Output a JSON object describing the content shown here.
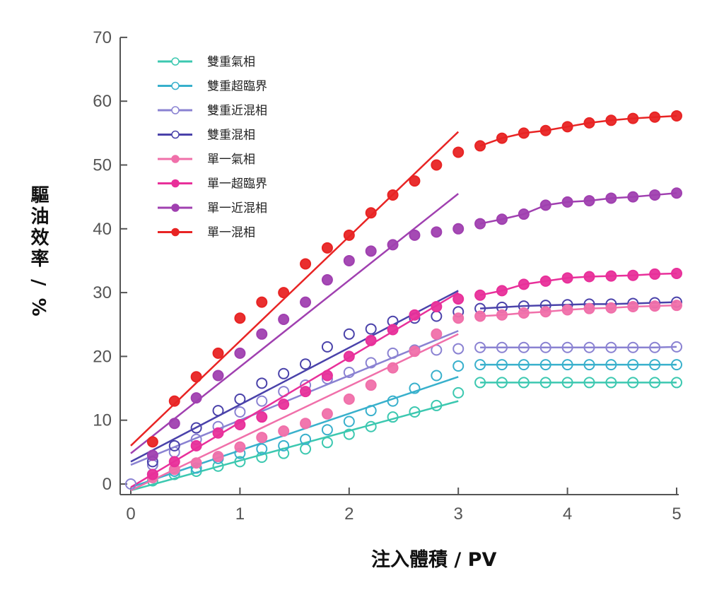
{
  "chart_data": {
    "type": "scatter",
    "title": "",
    "xlabel": "注入體積 / PV",
    "ylabel": "驅油效率 / %",
    "xlim": [
      0,
      5
    ],
    "ylim": [
      0,
      70
    ],
    "xticks": [
      "0",
      "1",
      "2",
      "3",
      "4",
      "5"
    ],
    "yticks": [
      "0",
      "10",
      "20",
      "30",
      "40",
      "50",
      "60",
      "70"
    ],
    "legend_position": "top-left",
    "x_phase1": [
      0.2,
      0.4,
      0.6,
      0.8,
      1.0,
      1.2,
      1.4,
      1.6,
      1.8,
      2.0,
      2.2,
      2.4,
      2.6,
      2.8,
      3.0
    ],
    "x_phase2": [
      3.2,
      3.4,
      3.6,
      3.8,
      4.0,
      4.2,
      4.4,
      4.6,
      4.8,
      5.0
    ],
    "series": [
      {
        "name": "雙重氣相",
        "color": "#3cc8b0",
        "filled": false,
        "fit": [
          -1,
          13
        ],
        "phase1": [
          0.5,
          1.5,
          2,
          2.8,
          3.5,
          4.2,
          4.8,
          5.5,
          6.5,
          7.8,
          9,
          10.5,
          11.3,
          12.3,
          14.3
        ],
        "phase2": [
          15.9,
          15.9,
          15.9,
          15.9,
          15.9,
          15.9,
          15.9,
          15.9,
          15.9,
          15.9
        ]
      },
      {
        "name": "雙重超臨界",
        "color": "#38b0cc",
        "filled": false,
        "fit": [
          -0.5,
          16.8
        ],
        "phase1": [
          1.5,
          2,
          2.5,
          4,
          4.8,
          5.5,
          6,
          7,
          8.5,
          9.8,
          11.5,
          13,
          15,
          17,
          18.5
        ],
        "phase2": [
          18.7,
          18.7,
          18.7,
          18.7,
          18.7,
          18.7,
          18.7,
          18.7,
          18.7,
          18.7
        ]
      },
      {
        "name": "雙重近混相",
        "color": "#8a82d2",
        "filled": false,
        "fit": [
          3,
          24
        ],
        "phase1": [
          3,
          5,
          7,
          9,
          11.3,
          13,
          14.5,
          15.5,
          16.5,
          17.5,
          19,
          20.5,
          21,
          21,
          21.2
        ],
        "phase2": [
          21.4,
          21.4,
          21.4,
          21.4,
          21.4,
          21.4,
          21.4,
          21.4,
          21.4,
          21.5
        ]
      },
      {
        "name": "雙重混相",
        "color": "#4a42aa",
        "filled": false,
        "fit": [
          3.5,
          30.3
        ],
        "phase1": [
          3.5,
          6,
          8.8,
          11.5,
          13.3,
          15.8,
          17.3,
          18.8,
          21.5,
          23.5,
          24.3,
          25.5,
          26,
          26.3,
          27
        ],
        "phase2": [
          27.5,
          27.7,
          27.9,
          28,
          28.1,
          28.2,
          28.2,
          28.3,
          28.4,
          28.5
        ]
      },
      {
        "name": "單一氣相",
        "color": "#f070aa",
        "filled": true,
        "fit": [
          -1,
          23.5
        ],
        "phase1": [
          1,
          2.3,
          3.3,
          4.3,
          5.8,
          7.3,
          8.3,
          9.5,
          11,
          13.3,
          15.5,
          18.2,
          20.8,
          23.5,
          26
        ],
        "phase2": [
          26.3,
          26.5,
          26.8,
          27,
          27.3,
          27.5,
          27.6,
          27.8,
          27.9,
          28
        ]
      },
      {
        "name": "單一超臨界",
        "color": "#e8309a",
        "filled": true,
        "fit": [
          -0.5,
          30
        ],
        "phase1": [
          1.5,
          3.5,
          6,
          8,
          9.3,
          10.5,
          12.5,
          14.5,
          17,
          20,
          22.5,
          24.2,
          26.5,
          27.8,
          29
        ],
        "phase2": [
          29.6,
          30.3,
          31.3,
          31.8,
          32.3,
          32.5,
          32.6,
          32.7,
          32.9,
          33
        ]
      },
      {
        "name": "單一近混相",
        "color": "#a040b0",
        "filled": true,
        "fit": [
          4.8,
          45.5
        ],
        "phase1": [
          4.5,
          9.5,
          13.5,
          17,
          20.5,
          23.5,
          25.8,
          28.5,
          32,
          35,
          36.5,
          37.5,
          39,
          39.5,
          40
        ],
        "phase2": [
          40.8,
          41.5,
          42.3,
          43.7,
          44.2,
          44.4,
          44.8,
          45,
          45.3,
          45.6
        ]
      },
      {
        "name": "單一混相",
        "color": "#e82424",
        "filled": true,
        "fit": [
          6,
          55.2
        ],
        "phase1": [
          6.6,
          13,
          16.8,
          20.5,
          26,
          28.5,
          30,
          34.5,
          37,
          39,
          42.5,
          45.3,
          47.5,
          50,
          52
        ],
        "phase2": [
          53,
          54.2,
          55,
          55.4,
          56,
          56.6,
          57,
          57.3,
          57.5,
          57.7
        ]
      }
    ],
    "origin_point": {
      "x": 0,
      "y": 0
    }
  }
}
